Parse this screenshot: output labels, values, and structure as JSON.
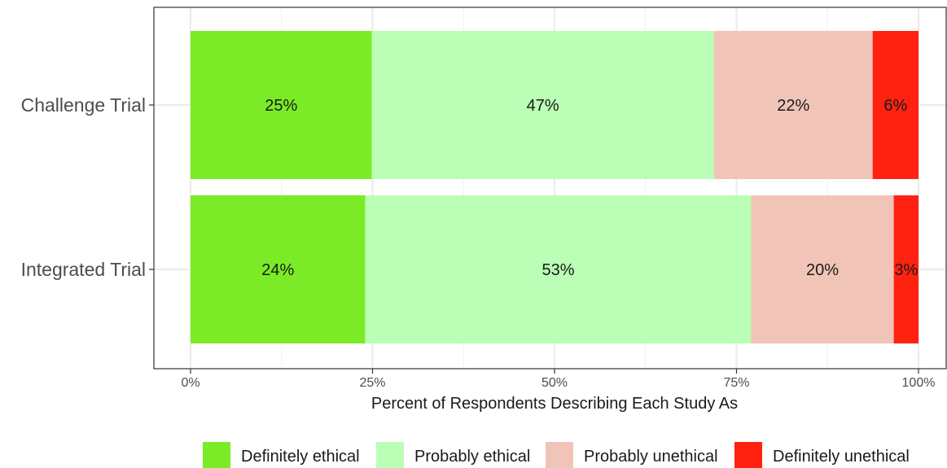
{
  "chart_data": {
    "type": "bar",
    "orientation": "horizontal",
    "stacked": true,
    "title": "",
    "xlabel": "Percent of Respondents Describing Each Study As",
    "ylabel": "",
    "xlim": [
      0,
      1
    ],
    "x_ticks": [
      {
        "value": 0,
        "label": "0%"
      },
      {
        "value": 0.25,
        "label": "25%"
      },
      {
        "value": 0.5,
        "label": "50%"
      },
      {
        "value": 0.75,
        "label": "75%"
      },
      {
        "value": 1,
        "label": "100%"
      }
    ],
    "grid": true,
    "legend_position": "bottom",
    "categories": [
      "Challenge Trial",
      "Integrated Trial"
    ],
    "series": [
      {
        "name": "Definitely ethical",
        "color": "#7BEB28",
        "values": [
          0.249,
          0.24
        ],
        "labels": [
          "25%",
          "24%"
        ]
      },
      {
        "name": "Probably ethical",
        "color": "#BAFFB5",
        "values": [
          0.47,
          0.53
        ],
        "labels": [
          "47%",
          "53%"
        ]
      },
      {
        "name": "Probably unethical",
        "color": "#F1C4B8",
        "values": [
          0.218,
          0.196
        ],
        "labels": [
          "22%",
          "20%"
        ]
      },
      {
        "name": "Definitely unethical",
        "color": "#FF2211",
        "values": [
          0.063,
          0.034
        ],
        "labels": [
          "6%",
          "3%"
        ]
      }
    ]
  }
}
